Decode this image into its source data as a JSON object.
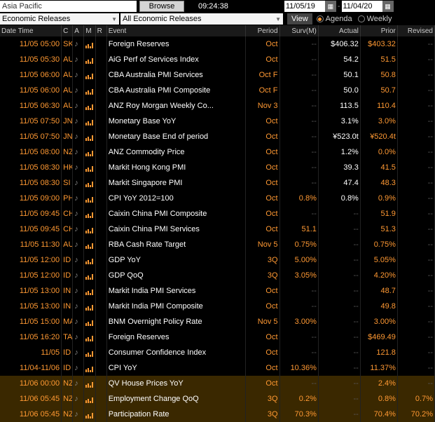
{
  "topbar": {
    "region": "Asia Pacific",
    "browse": "Browse",
    "time": "09:24:38",
    "date_from": "11/05/19",
    "date_to": "11/04/20"
  },
  "filters": {
    "release_type": "Economic Releases",
    "category": "All Economic Releases",
    "view_btn": "View",
    "mode_agenda": "Agenda",
    "mode_weekly": "Weekly"
  },
  "columns": {
    "dt": "Date Time",
    "c": "C",
    "a": "A",
    "m": "M",
    "r": "R",
    "event": "Event",
    "period": "Period",
    "surv": "Surv(M)",
    "actual": "Actual",
    "prior": "Prior",
    "revised": "Revised"
  },
  "rows": [
    {
      "dt": "11/05 05:00",
      "c": "SK",
      "event": "Foreign Reserves",
      "period": "Oct",
      "surv": "--",
      "actual": "$406.32",
      "prior": "$403.32",
      "rev": "--"
    },
    {
      "dt": "11/05 05:30",
      "c": "AU",
      "event": "AiG Perf of Services Index",
      "period": "Oct",
      "surv": "--",
      "actual": "54.2",
      "prior": "51.5",
      "rev": "--"
    },
    {
      "dt": "11/05 06:00",
      "c": "AU",
      "event": "CBA Australia PMI Services",
      "period": "Oct F",
      "surv": "--",
      "actual": "50.1",
      "prior": "50.8",
      "rev": "--"
    },
    {
      "dt": "11/05 06:00",
      "c": "AU",
      "event": "CBA Australia PMI Composite",
      "period": "Oct F",
      "surv": "--",
      "actual": "50.0",
      "prior": "50.7",
      "rev": "--"
    },
    {
      "dt": "11/05 06:30",
      "c": "AU",
      "event": "ANZ Roy Morgan Weekly Co...",
      "period": "Nov 3",
      "surv": "--",
      "actual": "113.5",
      "prior": "110.4",
      "rev": "--"
    },
    {
      "dt": "11/05 07:50",
      "c": "JN",
      "event": "Monetary Base YoY",
      "period": "Oct",
      "surv": "--",
      "actual": "3.1%",
      "prior": "3.0%",
      "rev": "--"
    },
    {
      "dt": "11/05 07:50",
      "c": "JN",
      "event": "Monetary Base End of period",
      "period": "Oct",
      "surv": "--",
      "actual": "¥523.0t",
      "prior": "¥520.4t",
      "rev": "--"
    },
    {
      "dt": "11/05 08:00",
      "c": "NZ",
      "event": "ANZ Commodity Price",
      "period": "Oct",
      "surv": "--",
      "actual": "1.2%",
      "prior": "0.0%",
      "rev": "--"
    },
    {
      "dt": "11/05 08:30",
      "c": "HK",
      "event": "Markit Hong Kong PMI",
      "period": "Oct",
      "surv": "--",
      "actual": "39.3",
      "prior": "41.5",
      "rev": "--"
    },
    {
      "dt": "11/05 08:30",
      "c": "SI",
      "event": "Markit Singapore PMI",
      "period": "Oct",
      "surv": "--",
      "actual": "47.4",
      "prior": "48.3",
      "rev": "--"
    },
    {
      "dt": "11/05 09:00",
      "c": "PH",
      "event": "CPI YoY 2012=100",
      "period": "Oct",
      "surv": "0.8%",
      "actual": "0.8%",
      "prior": "0.9%",
      "rev": "--"
    },
    {
      "dt": "11/05 09:45",
      "c": "CH",
      "event": "Caixin China PMI Composite",
      "period": "Oct",
      "surv": "--",
      "actual": "--",
      "prior": "51.9",
      "rev": "--"
    },
    {
      "dt": "11/05 09:45",
      "c": "CH",
      "event": "Caixin China PMI Services",
      "period": "Oct",
      "surv": "51.1",
      "actual": "--",
      "prior": "51.3",
      "rev": "--"
    },
    {
      "dt": "11/05 11:30",
      "c": "AU",
      "event": "RBA Cash Rate Target",
      "period": "Nov 5",
      "surv": "0.75%",
      "actual": "--",
      "prior": "0.75%",
      "rev": "--"
    },
    {
      "dt": "11/05 12:00",
      "c": "ID",
      "event": "GDP YoY",
      "period": "3Q",
      "surv": "5.00%",
      "actual": "--",
      "prior": "5.05%",
      "rev": "--"
    },
    {
      "dt": "11/05 12:00",
      "c": "ID",
      "event": "GDP QoQ",
      "period": "3Q",
      "surv": "3.05%",
      "actual": "--",
      "prior": "4.20%",
      "rev": "--"
    },
    {
      "dt": "11/05 13:00",
      "c": "IN",
      "event": "Markit India PMI Services",
      "period": "Oct",
      "surv": "--",
      "actual": "--",
      "prior": "48.7",
      "rev": "--"
    },
    {
      "dt": "11/05 13:00",
      "c": "IN",
      "event": "Markit India PMI Composite",
      "period": "Oct",
      "surv": "--",
      "actual": "--",
      "prior": "49.8",
      "rev": "--"
    },
    {
      "dt": "11/05 15:00",
      "c": "MA",
      "event": "BNM Overnight Policy Rate",
      "period": "Nov 5",
      "surv": "3.00%",
      "actual": "--",
      "prior": "3.00%",
      "rev": "--"
    },
    {
      "dt": "11/05 16:20",
      "c": "TA",
      "event": "Foreign Reserves",
      "period": "Oct",
      "surv": "--",
      "actual": "--",
      "prior": "$469.49",
      "rev": "--"
    },
    {
      "dt": "11/05",
      "c": "ID",
      "event": "Consumer Confidence Index",
      "period": "Oct",
      "surv": "--",
      "actual": "--",
      "prior": "121.8",
      "rev": "--"
    },
    {
      "dt": "11/04-11/06",
      "c": "ID",
      "event": "CPI YoY",
      "period": "Oct",
      "surv": "10.36%",
      "actual": "--",
      "prior": "11.37%",
      "rev": "--"
    },
    {
      "dt": "11/06 00:00",
      "c": "NZ",
      "event": "QV House Prices YoY",
      "period": "Oct",
      "surv": "--",
      "actual": "--",
      "prior": "2.4%",
      "rev": "--",
      "hl": true
    },
    {
      "dt": "11/06 05:45",
      "c": "NZ",
      "event": "Employment Change QoQ",
      "period": "3Q",
      "surv": "0.2%",
      "actual": "--",
      "prior": "0.8%",
      "rev": "0.7%",
      "hl": true
    },
    {
      "dt": "11/06 05:45",
      "c": "NZ",
      "event": "Participation Rate",
      "period": "3Q",
      "surv": "70.3%",
      "actual": "--",
      "prior": "70.4%",
      "rev": "70.2%",
      "hl": true
    }
  ],
  "colors": {
    "bg": "#000000",
    "orange": "#ff9933",
    "white": "#ffffff",
    "gray": "#888888",
    "hl_bg": "#3a2800",
    "header_bg": "#1a1a1a"
  }
}
